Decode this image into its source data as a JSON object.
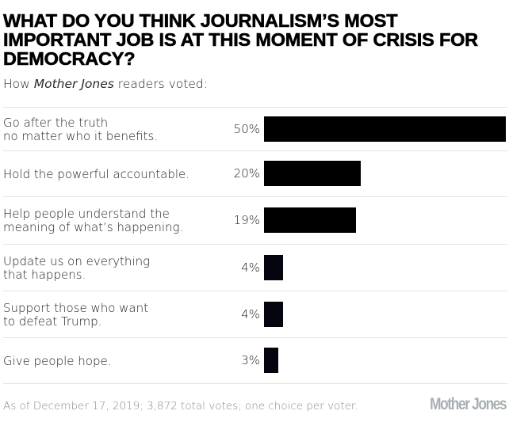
{
  "title": "What do you think journalism’s most important job is at this moment of crisis for democracy?",
  "subtitle": {
    "prefix": "How ",
    "publication": "Mother Jones",
    "suffix": " readers voted:"
  },
  "footnote": "As of December 17, 2019; 3,872 total votes; one choice per voter.",
  "logo": "Mother Jones",
  "colors": {
    "bar": "#000000",
    "separator": "#e3e3e3",
    "footnote": "#8a8a8a",
    "logo": "#a9aeb2"
  },
  "chart_data": {
    "type": "bar",
    "orientation": "horizontal",
    "title": "What do you think journalism’s most important job is at this moment of crisis for democracy?",
    "subtitle": "How Mother Jones readers voted:",
    "categories": [
      "Go after the truth no matter who it benefits.",
      "Hold the powerful accountable.",
      "Help people understand the meaning of what’s happening.",
      "Update us on everything that happens.",
      "Support those who want to defeat Trump.",
      "Give people hope."
    ],
    "category_lines": [
      [
        "Go after the truth",
        "no matter who it benefits."
      ],
      [
        "Hold the powerful accountable."
      ],
      [
        "Help people understand the",
        "meaning of what’s happening."
      ],
      [
        "Update us on everything",
        "that happens."
      ],
      [
        "Support those who want",
        "to defeat Trump."
      ],
      [
        "Give people hope."
      ]
    ],
    "values": [
      50,
      20,
      19,
      4,
      4,
      3
    ],
    "value_labels": [
      "50%",
      "20%",
      "19%",
      "4%",
      "4%",
      "3%"
    ],
    "unit": "%",
    "xlim": [
      0,
      50
    ],
    "grid": false,
    "legend": "none",
    "xlabel": "",
    "ylabel": "",
    "note": "As of December 17, 2019; 3,872 total votes; one choice per voter."
  }
}
